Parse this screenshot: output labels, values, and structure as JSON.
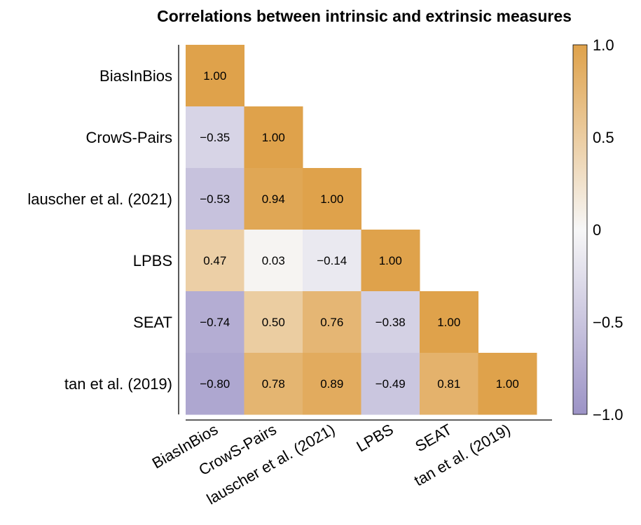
{
  "chart_data": {
    "type": "heatmap",
    "title": "Correlations between intrinsic and extrinsic measures",
    "labels": [
      "BiasInBios",
      "CrowS-Pairs",
      "lauscher et al. (2021)",
      "LPBS",
      "SEAT",
      "tan et al. (2019)"
    ],
    "matrix": [
      [
        1.0
      ],
      [
        -0.35,
        1.0
      ],
      [
        -0.53,
        0.94,
        1.0
      ],
      [
        0.47,
        0.03,
        -0.14,
        1.0
      ],
      [
        -0.74,
        0.5,
        0.76,
        -0.38,
        1.0
      ],
      [
        -0.8,
        0.78,
        0.89,
        -0.49,
        0.81,
        1.0
      ]
    ],
    "value_labels": [
      [
        "1.00"
      ],
      [
        "−0.35",
        "1.00"
      ],
      [
        "−0.53",
        "0.94",
        "1.00"
      ],
      [
        "0.47",
        "0.03",
        "−0.14",
        "1.00"
      ],
      [
        "−0.74",
        "0.50",
        "0.76",
        "−0.38",
        "1.00"
      ],
      [
        "−0.80",
        "0.78",
        "0.89",
        "−0.49",
        "0.81",
        "1.00"
      ]
    ],
    "colorbar": {
      "range": [
        -1.0,
        1.0
      ],
      "ticks": [
        1.0,
        0.5,
        0,
        -0.5,
        -1.0
      ],
      "tick_labels": [
        "1.0",
        "0.5",
        "0",
        "−0.5",
        "−1.0"
      ],
      "colors": {
        "low": "#9c93c6",
        "mid": "#f7f7f7",
        "high": "#dfa24b"
      }
    },
    "grid": false,
    "legend": "colorbar-right"
  }
}
